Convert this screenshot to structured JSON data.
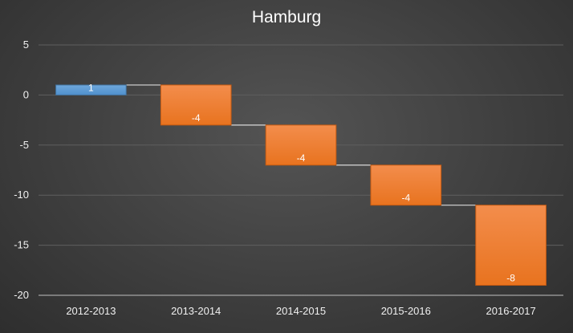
{
  "chart_data": {
    "type": "bar",
    "subtype": "waterfall",
    "title": "Hamburg",
    "categories": [
      "2012-2013",
      "2013-2014",
      "2014-2015",
      "2015-2016",
      "2016-2017"
    ],
    "values": [
      1,
      -4,
      -4,
      -4,
      -8
    ],
    "ylim": [
      -20,
      5
    ],
    "yticks": [
      5,
      0,
      -5,
      -10,
      -15,
      -20
    ],
    "grid": true,
    "legend": "none",
    "colors": {
      "increase": "#5b9bd5",
      "decrease": "#ed7d31",
      "connector": "#d9d9d9",
      "gridline": "#5f5f5f"
    }
  }
}
